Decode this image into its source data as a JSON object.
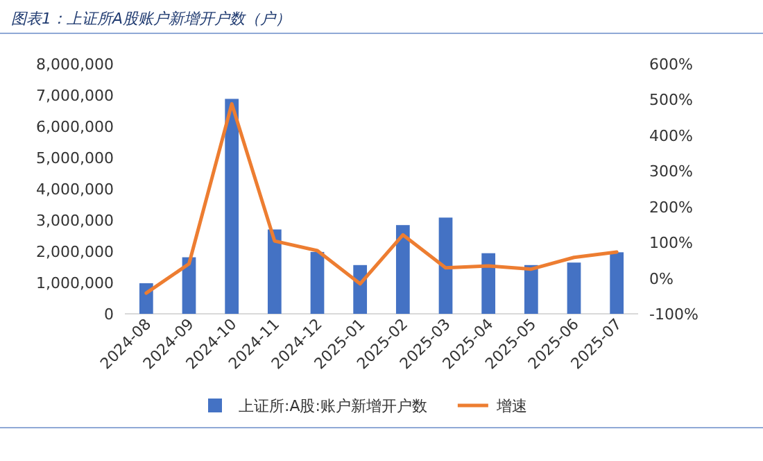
{
  "chart_data": {
    "type": "bar",
    "title": "图表1：上证所A股账户新增开户数（户）",
    "categories": [
      "2024-08",
      "2024-09",
      "2024-10",
      "2024-11",
      "2024-12",
      "2025-01",
      "2025-02",
      "2025-03",
      "2025-04",
      "2025-05",
      "2025-06",
      "2025-07"
    ],
    "series": [
      {
        "name": "上证所:A股:账户新增开户数",
        "color": "#4472c4",
        "values": [
          980000,
          1810000,
          6880000,
          2700000,
          1980000,
          1560000,
          2840000,
          3080000,
          1940000,
          1560000,
          1640000,
          1970000
        ]
      },
      {
        "name": "增速",
        "type": "line",
        "axis": "y2",
        "color": "#ed7d31",
        "values": [
          -42,
          40,
          488,
          104,
          77,
          -16,
          121,
          29,
          34,
          25,
          58,
          73
        ]
      }
    ],
    "ylim": [
      0,
      8000000
    ],
    "yticks": [
      {
        "value": 0,
        "label": "0"
      },
      {
        "value": 1000000,
        "label": "1,000,000"
      },
      {
        "value": 2000000,
        "label": "2,000,000"
      },
      {
        "value": 3000000,
        "label": "3,000,000"
      },
      {
        "value": 4000000,
        "label": "4,000,000"
      },
      {
        "value": 5000000,
        "label": "5,000,000"
      },
      {
        "value": 6000000,
        "label": "6,000,000"
      },
      {
        "value": 7000000,
        "label": "7,000,000"
      },
      {
        "value": 8000000,
        "label": "8,000,000"
      }
    ],
    "y2lim": [
      -100,
      600
    ],
    "y2ticks": [
      {
        "value": -100,
        "label": "-100%"
      },
      {
        "value": 0,
        "label": "0%"
      },
      {
        "value": 100,
        "label": "100%"
      },
      {
        "value": 200,
        "label": "200%"
      },
      {
        "value": 300,
        "label": "300%"
      },
      {
        "value": 400,
        "label": "400%"
      },
      {
        "value": 500,
        "label": "500%"
      },
      {
        "value": 600,
        "label": "600%"
      }
    ],
    "grid": false,
    "legend": "bottom",
    "marker": "none",
    "line_style": "solid"
  }
}
